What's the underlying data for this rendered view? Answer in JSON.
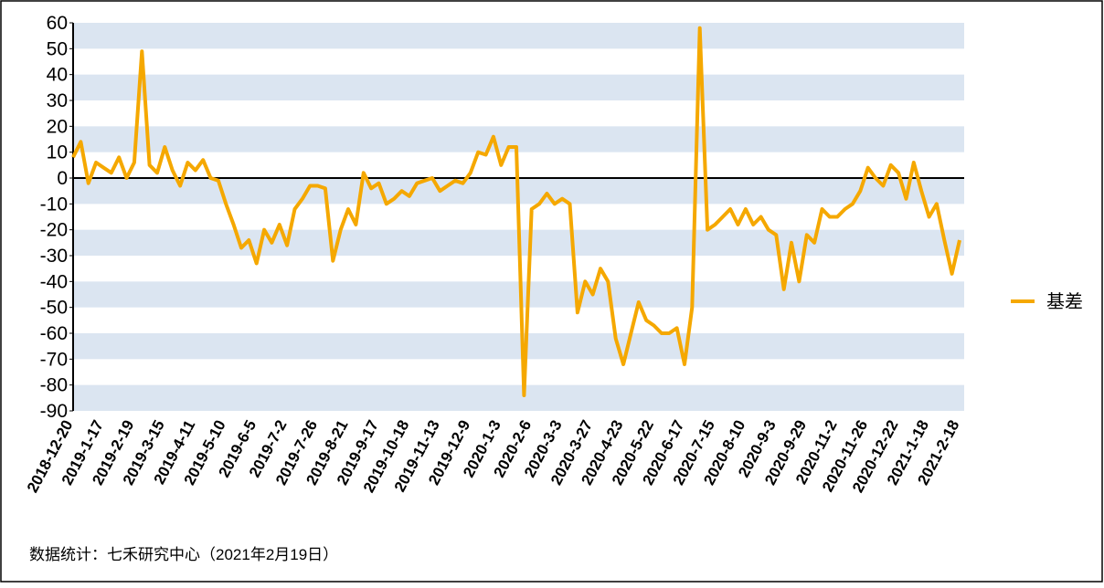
{
  "chart_data": {
    "type": "line",
    "categories": [
      "2018-12-20",
      null,
      null,
      null,
      "2019-1-17",
      null,
      null,
      null,
      "2019-2-19",
      null,
      null,
      null,
      "2019-3-15",
      null,
      null,
      null,
      "2019-4-11",
      null,
      null,
      null,
      "2019-5-10",
      null,
      null,
      null,
      "2019-6-5",
      null,
      null,
      null,
      "2019-7-2",
      null,
      null,
      null,
      "2019-7-26",
      null,
      null,
      null,
      "2019-8-21",
      null,
      null,
      null,
      "2019-9-17",
      null,
      null,
      null,
      "2019-10-18",
      null,
      null,
      null,
      "2019-11-13",
      null,
      null,
      null,
      "2019-12-9",
      null,
      null,
      null,
      "2020-1-3",
      null,
      null,
      null,
      "2020-2-6",
      null,
      null,
      null,
      "2020-3-3",
      null,
      null,
      null,
      "2020-3-27",
      null,
      null,
      null,
      "2020-4-23",
      null,
      null,
      null,
      "2020-5-22",
      null,
      null,
      null,
      "2020-6-17",
      null,
      null,
      null,
      "2020-7-15",
      null,
      null,
      null,
      "2020-8-10",
      null,
      null,
      null,
      "2020-9-3",
      null,
      null,
      null,
      "2020-9-29",
      null,
      null,
      null,
      "2020-11-2",
      null,
      null,
      null,
      "2020-11-26",
      null,
      null,
      null,
      "2020-12-22",
      null,
      null,
      null,
      "2021-1-18",
      null,
      null,
      null,
      "2021-2-18"
    ],
    "series": [
      {
        "name": "基差",
        "color": "#f5a800",
        "values": [
          8,
          14,
          -2,
          6,
          4,
          2,
          8,
          0,
          6,
          49,
          5,
          2,
          12,
          3,
          -3,
          6,
          3,
          7,
          0,
          -1,
          -10,
          -18,
          -27,
          -24,
          -33,
          -20,
          -25,
          -18,
          -26,
          -12,
          -8,
          -3,
          -3,
          -4,
          -32,
          -20,
          -12,
          -18,
          2,
          -4,
          -2,
          -10,
          -8,
          -5,
          -7,
          -2,
          -1,
          0,
          -5,
          -3,
          -1,
          -2,
          2,
          10,
          9,
          16,
          5,
          12,
          12,
          -84,
          -12,
          -10,
          -6,
          -10,
          -8,
          -10,
          -52,
          -40,
          -45,
          -35,
          -40,
          -62,
          -72,
          -60,
          -48,
          -55,
          -57,
          -60,
          -60,
          -58,
          -72,
          -50,
          58,
          -20,
          -18,
          -15,
          -12,
          -18,
          -12,
          -18,
          -15,
          -20,
          -22,
          -43,
          -25,
          -40,
          -22,
          -25,
          -12,
          -15,
          -15,
          -12,
          -10,
          -5,
          4,
          0,
          -3,
          5,
          2,
          -8,
          6,
          -5,
          -15,
          -10,
          -24,
          -37,
          -24
        ]
      }
    ],
    "ylim": [
      -90,
      60
    ],
    "yticks": [
      60,
      50,
      40,
      30,
      20,
      10,
      0,
      -10,
      -20,
      -30,
      -40,
      -50,
      -60,
      -70,
      -80,
      -90
    ],
    "striped_background": true,
    "legend": "right",
    "source": "数据统计：七禾研究中心（2021年2月19日）"
  }
}
